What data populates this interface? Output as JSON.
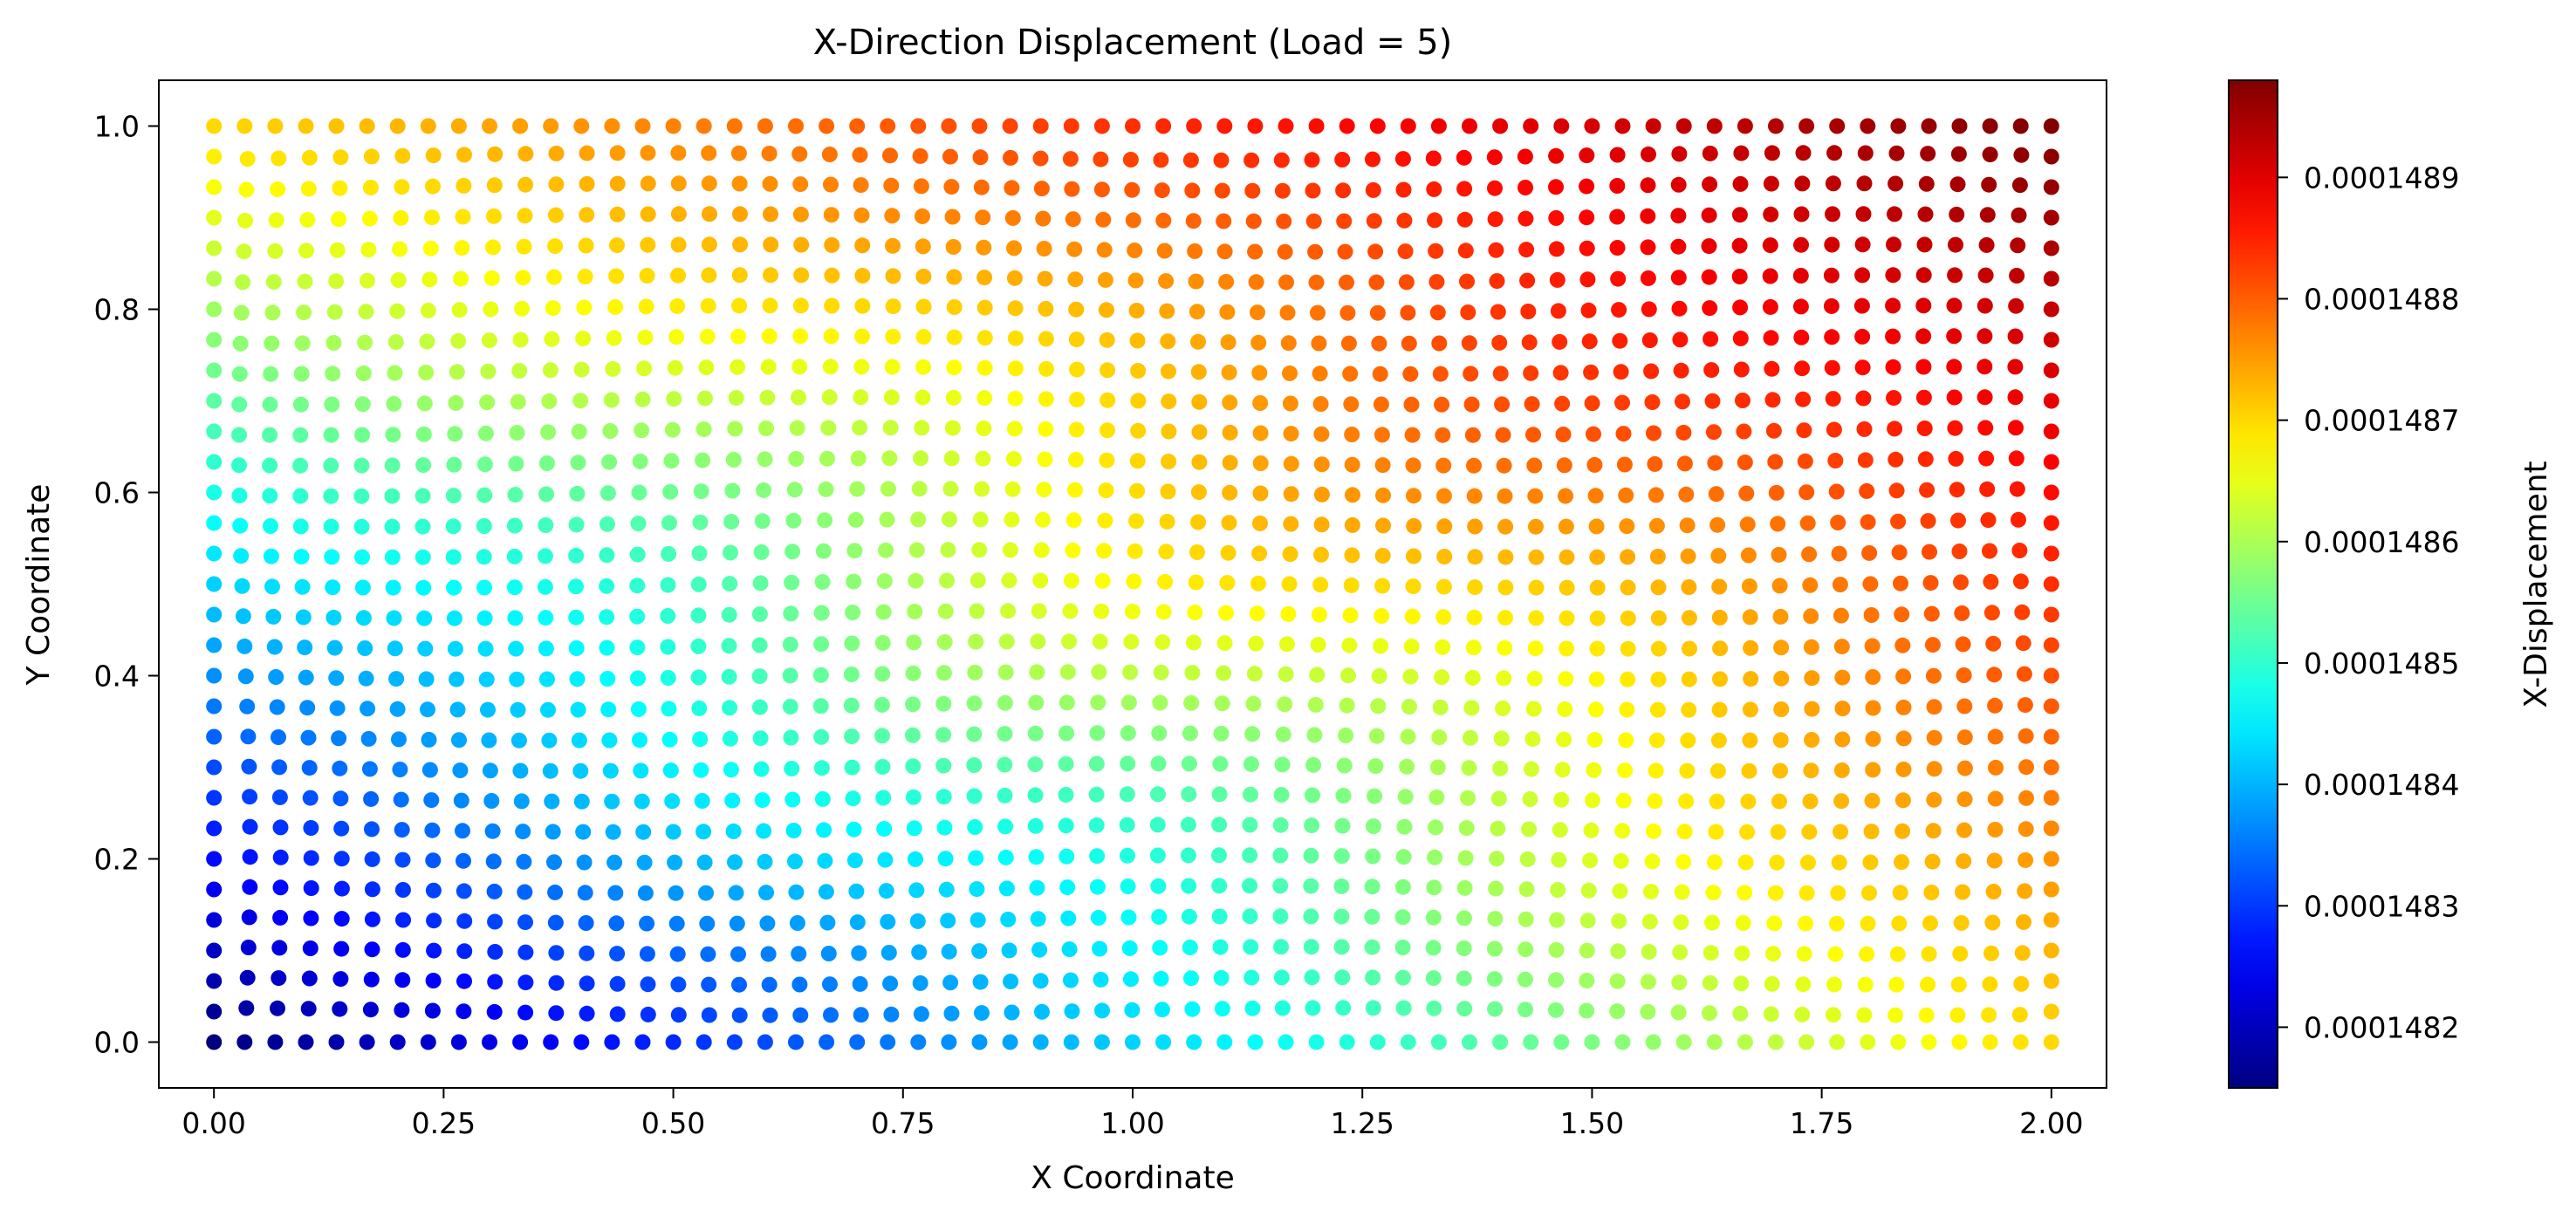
{
  "chart_data": {
    "type": "scatter",
    "title": "X-Direction Displacement (Load = 5)",
    "xlabel": "X Coordinate",
    "ylabel": "Y Coordinate",
    "xlim": [
      -0.06,
      2.06
    ],
    "ylim": [
      -0.05,
      1.05
    ],
    "xticks": [
      0.0,
      0.25,
      0.5,
      0.75,
      1.0,
      1.25,
      1.5,
      1.75,
      2.0
    ],
    "xtick_labels": [
      "0.00",
      "0.25",
      "0.50",
      "0.75",
      "1.00",
      "1.25",
      "1.50",
      "1.75",
      "2.00"
    ],
    "yticks": [
      0.0,
      0.2,
      0.4,
      0.6,
      0.8,
      1.0
    ],
    "ytick_labels": [
      "0.0",
      "0.2",
      "0.4",
      "0.6",
      "0.8",
      "1.0"
    ],
    "grid": false,
    "colormap": "jet",
    "colorbar": {
      "label": "X-Displacement",
      "vmin": 0.00014815,
      "vmax": 0.00014898,
      "ticks": [
        0.0001482,
        0.0001483,
        0.0001484,
        0.0001485,
        0.0001486,
        0.0001487,
        0.0001488,
        0.0001489
      ],
      "tick_labels": [
        "0.0001482",
        "0.0001483",
        "0.0001484",
        "0.0001485",
        "0.0001486",
        "0.0001487",
        "0.0001488",
        "0.0001489"
      ]
    },
    "field": {
      "description_of_values": "color = X-Displacement at nodes on a ~60x30 grid over x in [0,2], y in [0,1]",
      "corner_values": {
        "x0_y0": 0.00014815,
        "x2_y0": 0.0001487,
        "x0_y1": 0.0001487,
        "x2_y1": 0.00014898
      },
      "grid_nx": 61,
      "grid_ny": 31
    }
  }
}
